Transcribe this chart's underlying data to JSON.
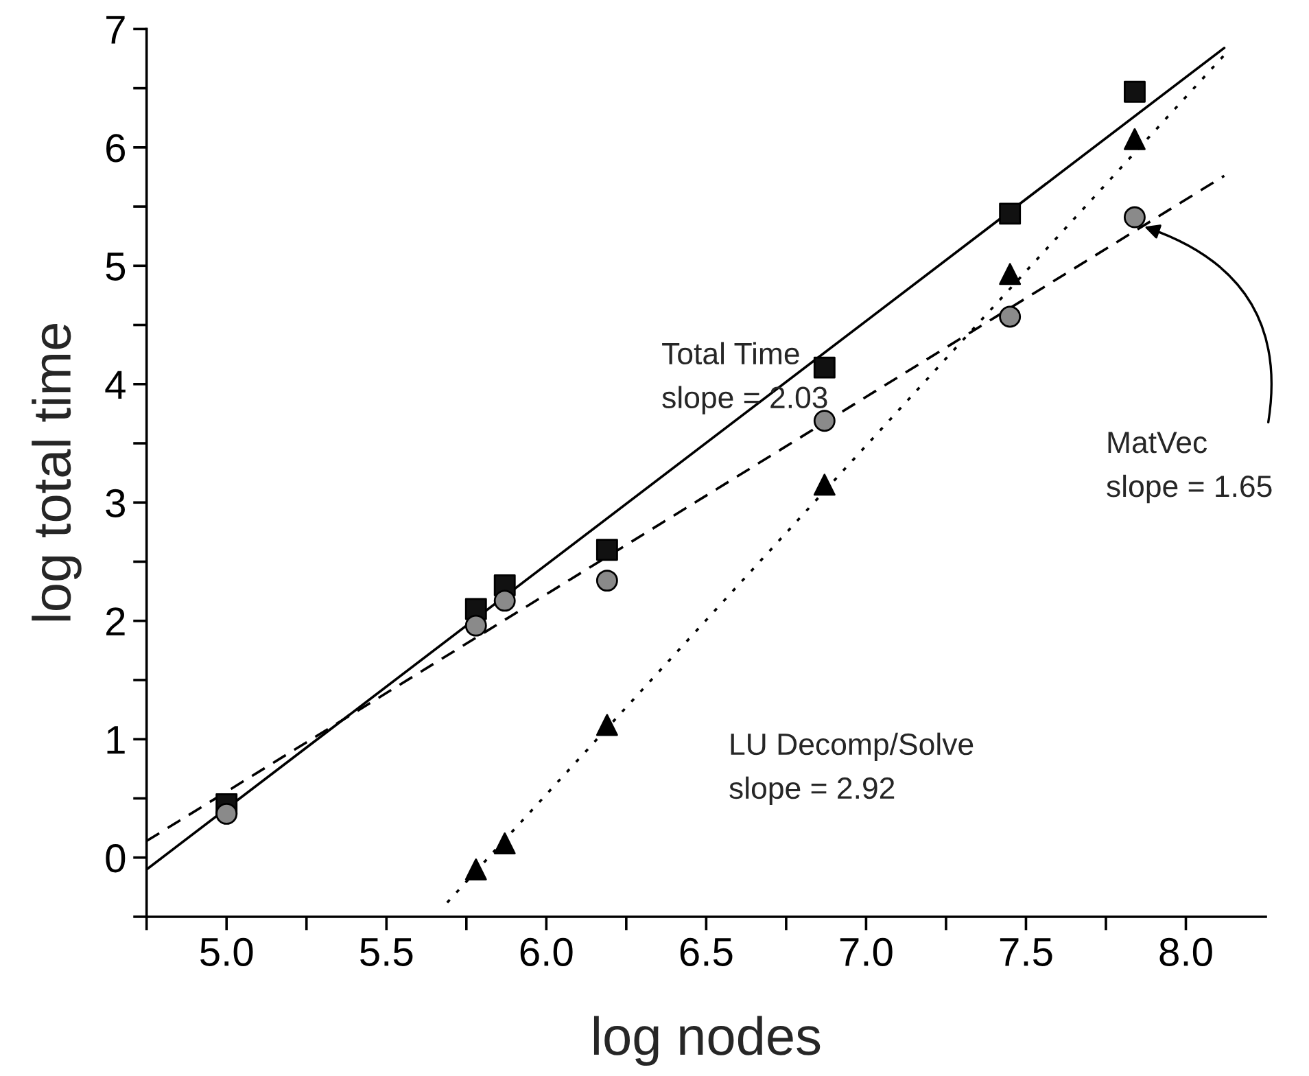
{
  "chart_data": {
    "type": "scatter",
    "xlabel": "log nodes",
    "ylabel": "log total time",
    "xlim": [
      4.75,
      8.25
    ],
    "ylim": [
      -0.5,
      7
    ],
    "xticks": [
      {
        "value": 4.75,
        "label": null
      },
      {
        "value": 5.0,
        "label": "5.0"
      },
      {
        "value": 5.25,
        "label": null
      },
      {
        "value": 5.5,
        "label": "5.5"
      },
      {
        "value": 5.75,
        "label": null
      },
      {
        "value": 6.0,
        "label": "6.0"
      },
      {
        "value": 6.25,
        "label": null
      },
      {
        "value": 6.5,
        "label": "6.5"
      },
      {
        "value": 6.75,
        "label": null
      },
      {
        "value": 7.0,
        "label": "7.0"
      },
      {
        "value": 7.25,
        "label": null
      },
      {
        "value": 7.5,
        "label": "7.5"
      },
      {
        "value": 7.75,
        "label": null
      },
      {
        "value": 8.0,
        "label": "8.0"
      }
    ],
    "yticks": [
      {
        "value": -0.5,
        "label": null
      },
      0,
      {
        "value": 0.5,
        "label": null
      },
      1,
      {
        "value": 1.5,
        "label": null
      },
      2,
      {
        "value": 2.5,
        "label": null
      },
      3,
      {
        "value": 3.5,
        "label": null
      },
      4,
      {
        "value": 4.5,
        "label": null
      },
      5,
      {
        "value": 5.5,
        "label": null
      },
      6,
      {
        "value": 6.5,
        "label": null
      },
      7
    ],
    "grid": false,
    "series": [
      {
        "marker": "square",
        "color": "#111111",
        "x": [
          5.0,
          5.78,
          5.87,
          6.19,
          6.87,
          7.45,
          7.84
        ],
        "values": [
          0.45,
          2.1,
          2.3,
          2.6,
          4.14,
          5.44,
          6.47
        ]
      },
      {
        "marker": "circle",
        "color": "#8a8a8a",
        "x": [
          5.0,
          5.78,
          5.87,
          6.19,
          6.87,
          7.45,
          7.84
        ],
        "values": [
          0.37,
          1.96,
          2.17,
          2.34,
          3.69,
          4.57,
          5.41
        ]
      },
      {
        "marker": "triangle",
        "color": "#000000",
        "x": [
          5.78,
          5.87,
          6.19,
          6.87,
          7.45,
          7.84
        ],
        "values": [
          -0.1,
          0.12,
          1.12,
          3.15,
          4.93,
          6.07
        ]
      },
      {
        "type": "line",
        "line_style": "solid",
        "color": "#000000",
        "x": [
          4.75,
          8.12
        ],
        "values": [
          -0.1,
          6.84
        ]
      },
      {
        "type": "line",
        "line_style": "dashed",
        "color": "#000000",
        "x": [
          4.75,
          8.12
        ],
        "values": [
          0.14,
          5.76
        ]
      },
      {
        "type": "line",
        "line_style": "dotted",
        "color": "#000000",
        "x": [
          5.69,
          8.12
        ],
        "values": [
          -0.38,
          6.78
        ]
      }
    ],
    "annotations": [
      "Total Time\nslope = 2.03",
      {
        "text": "MatVec\nslope = 1.65",
        "x": 7.87,
        "y": 5.33
      },
      "LU Decomp/Solve\nslope = 2.92"
    ]
  }
}
